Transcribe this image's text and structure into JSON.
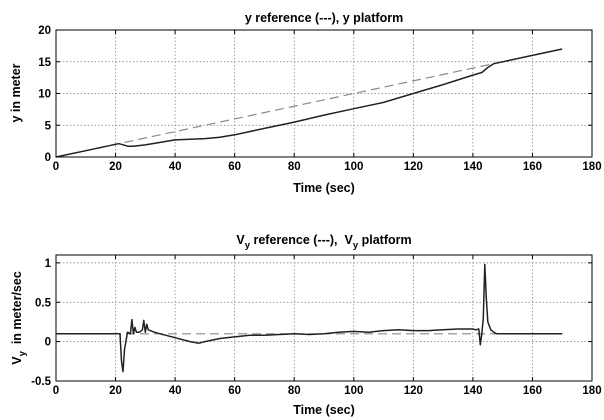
{
  "chart_data": [
    {
      "type": "line",
      "title": "y reference (---),  y platform",
      "xlabel": "Time (sec)",
      "ylabel": "y in meter",
      "xlim": [
        0,
        180
      ],
      "ylim": [
        0,
        20
      ],
      "xticks": [
        0,
        20,
        40,
        60,
        80,
        100,
        120,
        140,
        160,
        180
      ],
      "yticks": [
        0,
        5,
        10,
        15,
        20
      ],
      "grid": true,
      "series": [
        {
          "style": "dashed",
          "color": "#8a8a8a",
          "x": [
            0,
            21,
            146,
            170
          ],
          "y": [
            0,
            2.1,
            14.6,
            17.0
          ]
        },
        {
          "style": "solid",
          "color": "#222222",
          "x": [
            0,
            10,
            21,
            22,
            24,
            26,
            30,
            35,
            40,
            45,
            50,
            55,
            60,
            70,
            80,
            90,
            100,
            110,
            120,
            130,
            140,
            143,
            145,
            147,
            150,
            160,
            170
          ],
          "y": [
            0,
            1.0,
            2.1,
            2.0,
            1.7,
            1.7,
            1.9,
            2.3,
            2.7,
            2.8,
            2.9,
            3.1,
            3.5,
            4.5,
            5.5,
            6.6,
            7.6,
            8.6,
            10.0,
            11.4,
            12.9,
            13.3,
            14.1,
            14.7,
            15.0,
            16.0,
            17.0
          ]
        }
      ]
    },
    {
      "type": "line",
      "title_parts": [
        "V",
        "y",
        " reference (---),  V",
        "y",
        " platform"
      ],
      "xlabel": "Time (sec)",
      "ylabel_parts": [
        "V",
        "y",
        "  in meter/sec"
      ],
      "xlim": [
        0,
        180
      ],
      "ylim": [
        -0.5,
        1.1
      ],
      "xticks": [
        0,
        20,
        40,
        60,
        80,
        100,
        120,
        140,
        160,
        180
      ],
      "yticks": [
        -0.5,
        0,
        0.5,
        1
      ],
      "ytick_labels": [
        "-0.5",
        "0",
        "0.5",
        "1"
      ],
      "grid": true,
      "series": [
        {
          "style": "dashed",
          "color": "#8a8a8a",
          "x": [
            0,
            170
          ],
          "y": [
            0.1,
            0.1
          ]
        },
        {
          "style": "solid",
          "color": "#222222",
          "x": [
            0,
            21.5,
            22,
            22.5,
            23,
            24,
            25,
            25.5,
            26,
            26.5,
            27,
            28,
            29,
            29.5,
            30,
            30.5,
            31,
            33,
            35,
            40,
            45,
            48,
            50,
            55,
            60,
            65,
            70,
            75,
            80,
            85,
            90,
            95,
            100,
            105,
            110,
            115,
            120,
            125,
            130,
            135,
            140,
            141,
            142,
            142.5,
            143,
            143.5,
            144,
            144.5,
            145,
            146,
            147,
            148,
            150,
            160,
            170
          ],
          "y": [
            0.1,
            0.1,
            -0.25,
            -0.38,
            -0.1,
            0.12,
            0.1,
            0.28,
            0.1,
            0.18,
            0.12,
            0.12,
            0.15,
            0.27,
            0.12,
            0.22,
            0.15,
            0.12,
            0.1,
            0.05,
            0.0,
            -0.02,
            0.0,
            0.04,
            0.06,
            0.08,
            0.08,
            0.09,
            0.1,
            0.09,
            0.1,
            0.12,
            0.13,
            0.12,
            0.14,
            0.15,
            0.14,
            0.14,
            0.15,
            0.16,
            0.16,
            0.15,
            0.16,
            -0.04,
            0.1,
            0.3,
            0.98,
            0.55,
            0.25,
            0.15,
            0.12,
            0.1,
            0.1,
            0.1,
            0.1
          ]
        }
      ]
    }
  ]
}
